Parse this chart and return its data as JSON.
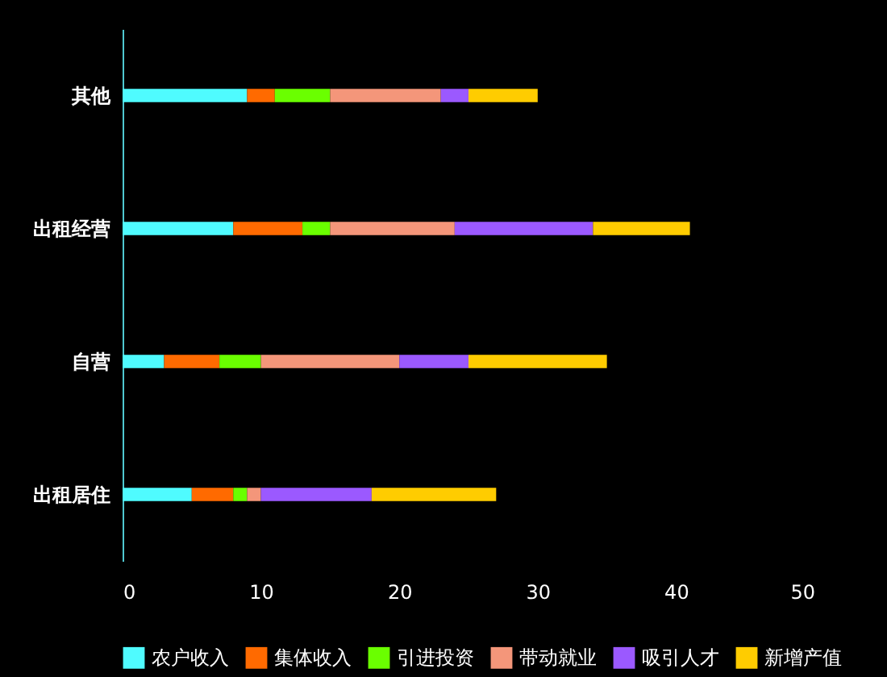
{
  "chart_data": {
    "type": "bar",
    "orientation": "horizontal",
    "stacked": true,
    "categories": [
      "其他",
      "出租经营",
      "自营",
      "出租居住"
    ],
    "series": [
      {
        "name": "农户收入",
        "color": "#4ffbff",
        "values": [
          9,
          8,
          3,
          5
        ]
      },
      {
        "name": "集体收入",
        "color": "#ff6a00",
        "values": [
          2,
          5,
          4,
          3
        ]
      },
      {
        "name": "引进投资",
        "color": "#6aff00",
        "values": [
          4,
          2,
          3,
          1
        ]
      },
      {
        "name": "带动就业",
        "color": "#f4967a",
        "values": [
          8,
          9,
          10,
          1
        ]
      },
      {
        "name": "吸引人才",
        "color": "#9b59ff",
        "values": [
          2,
          10,
          5,
          8
        ]
      },
      {
        "name": "新增产值",
        "color": "#ffcc00",
        "values": [
          5,
          7,
          10,
          9
        ]
      }
    ],
    "xlim": [
      0,
      50
    ],
    "xticks": [
      0,
      10,
      20,
      30,
      40,
      50
    ],
    "grid": false,
    "legend": "bottom"
  }
}
